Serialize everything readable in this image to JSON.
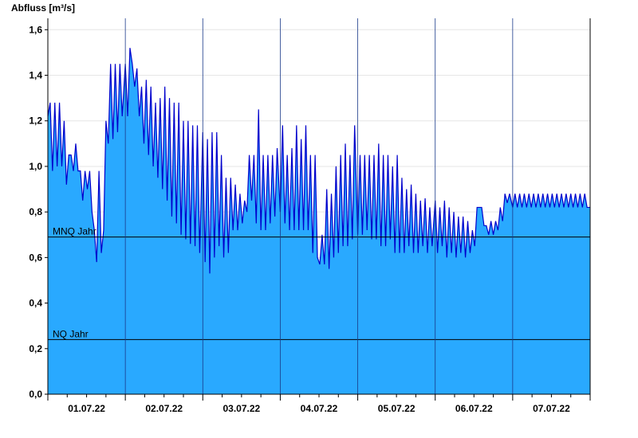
{
  "chart_data": {
    "type": "area",
    "ylabel": "Abfluss [m³/s]",
    "xlabel": "",
    "ylim": [
      0,
      1.65
    ],
    "yticks": [
      "0,0",
      "0,2",
      "0,4",
      "0,6",
      "0,8",
      "1,0",
      "1,2",
      "1,4",
      "1,6"
    ],
    "ytick_values": [
      0,
      0.2,
      0.4,
      0.6,
      0.8,
      1.0,
      1.2,
      1.4,
      1.6
    ],
    "xlim_days": [
      0,
      7
    ],
    "x_categories": [
      "01.07.22",
      "02.07.22",
      "03.07.22",
      "04.07.22",
      "05.07.22",
      "06.07.22",
      "07.07.22"
    ],
    "fill_color": "#29a9ff",
    "line_color": "#0000cc",
    "grid": "horizontal",
    "reference_lines": [
      {
        "label": "MNQ Jahr",
        "value": 0.69
      },
      {
        "label": "NQ Jahr",
        "value": 0.24
      }
    ],
    "series": [
      {
        "x_days": [
          0,
          0.03,
          0.06,
          0.09,
          0.12,
          0.15,
          0.18,
          0.21,
          0.24,
          0.27,
          0.3,
          0.33,
          0.36,
          0.39,
          0.42,
          0.45,
          0.48,
          0.51,
          0.54,
          0.57,
          0.6,
          0.63,
          0.66,
          0.69,
          0.72,
          0.75,
          0.78,
          0.81,
          0.84,
          0.87,
          0.9,
          0.93,
          0.96,
          1.0,
          1.03,
          1.06,
          1.09,
          1.12,
          1.15,
          1.18,
          1.21,
          1.24,
          1.27,
          1.3,
          1.33,
          1.36,
          1.39,
          1.42,
          1.45,
          1.48,
          1.51,
          1.54,
          1.57,
          1.6,
          1.63,
          1.66,
          1.69,
          1.72,
          1.75,
          1.78,
          1.81,
          1.84,
          1.87,
          1.9,
          1.93,
          1.96,
          2.0,
          2.03,
          2.06,
          2.09,
          2.12,
          2.15,
          2.18,
          2.21,
          2.24,
          2.27,
          2.3,
          2.33,
          2.36,
          2.39,
          2.42,
          2.45,
          2.48,
          2.51,
          2.54,
          2.57,
          2.6,
          2.63,
          2.66,
          2.69,
          2.72,
          2.75,
          2.78,
          2.81,
          2.84,
          2.87,
          2.9,
          2.93,
          2.96,
          3.0,
          3.03,
          3.06,
          3.09,
          3.12,
          3.15,
          3.18,
          3.21,
          3.24,
          3.27,
          3.3,
          3.33,
          3.36,
          3.39,
          3.42,
          3.45,
          3.48,
          3.51,
          3.54,
          3.57,
          3.6,
          3.63,
          3.66,
          3.69,
          3.72,
          3.75,
          3.78,
          3.81,
          3.84,
          3.87,
          3.9,
          3.93,
          3.96,
          4.0,
          4.03,
          4.06,
          4.09,
          4.12,
          4.15,
          4.18,
          4.21,
          4.24,
          4.27,
          4.3,
          4.33,
          4.36,
          4.39,
          4.42,
          4.45,
          4.48,
          4.51,
          4.54,
          4.57,
          4.6,
          4.63,
          4.66,
          4.69,
          4.72,
          4.75,
          4.78,
          4.81,
          4.84,
          4.87,
          4.9,
          4.93,
          4.96,
          5.0,
          5.03,
          5.06,
          5.09,
          5.12,
          5.15,
          5.18,
          5.21,
          5.24,
          5.27,
          5.3,
          5.33,
          5.36,
          5.39,
          5.42,
          5.45,
          5.48,
          5.51,
          5.54,
          5.57,
          5.6,
          5.63,
          5.66,
          5.69,
          5.72,
          5.75,
          5.78,
          5.81,
          5.84,
          5.87,
          5.9,
          5.93,
          5.96,
          6.0,
          6.03,
          6.06,
          6.09,
          6.12,
          6.15,
          6.18,
          6.21,
          6.24,
          6.27,
          6.3,
          6.33,
          6.36,
          6.39,
          6.42,
          6.45,
          6.48,
          6.51,
          6.54,
          6.57,
          6.6,
          6.63,
          6.66,
          6.69,
          6.72,
          6.75,
          6.78,
          6.81,
          6.84,
          6.87,
          6.9,
          6.93,
          6.96,
          7.0
        ],
        "values": [
          1.22,
          1.28,
          0.98,
          1.28,
          1.0,
          1.28,
          1.0,
          1.2,
          0.92,
          1.05,
          1.05,
          0.98,
          1.1,
          0.98,
          0.98,
          0.85,
          0.98,
          0.9,
          0.98,
          0.8,
          0.72,
          0.58,
          0.98,
          0.62,
          0.72,
          1.2,
          1.1,
          1.45,
          1.12,
          1.45,
          1.15,
          1.45,
          1.22,
          1.45,
          1.22,
          1.52,
          1.45,
          1.35,
          1.43,
          1.22,
          1.35,
          1.1,
          1.38,
          1.05,
          1.35,
          1.0,
          1.28,
          0.95,
          1.3,
          0.9,
          1.35,
          0.85,
          1.3,
          0.78,
          1.28,
          0.75,
          1.28,
          0.7,
          1.2,
          0.68,
          1.2,
          0.66,
          1.18,
          0.65,
          1.18,
          0.62,
          1.15,
          0.58,
          1.12,
          0.53,
          1.15,
          0.6,
          1.15,
          0.65,
          1.05,
          0.6,
          0.95,
          0.62,
          0.95,
          0.72,
          0.92,
          0.72,
          0.88,
          0.75,
          0.85,
          0.8,
          1.05,
          0.85,
          1.05,
          0.75,
          1.25,
          0.72,
          1.05,
          0.72,
          1.05,
          0.75,
          1.05,
          0.78,
          1.08,
          0.8,
          1.18,
          0.75,
          1.05,
          0.72,
          1.08,
          0.72,
          1.18,
          0.72,
          1.12,
          0.72,
          1.18,
          0.72,
          1.05,
          0.62,
          1.05,
          0.6,
          0.57,
          0.7,
          0.57,
          0.9,
          0.55,
          0.88,
          0.6,
          1.0,
          0.62,
          1.05,
          0.65,
          1.1,
          0.65,
          1.05,
          0.68,
          1.18,
          0.7,
          1.05,
          0.7,
          1.05,
          0.72,
          1.05,
          0.68,
          1.05,
          0.68,
          1.1,
          0.65,
          1.05,
          0.65,
          1.05,
          0.68,
          1.0,
          0.62,
          1.05,
          0.62,
          0.95,
          0.62,
          0.9,
          0.65,
          0.92,
          0.62,
          0.88,
          0.62,
          0.85,
          0.65,
          0.86,
          0.62,
          0.82,
          0.65,
          0.85,
          0.62,
          0.82,
          0.65,
          0.85,
          0.6,
          0.82,
          0.62,
          0.8,
          0.6,
          0.78,
          0.62,
          0.78,
          0.6,
          0.76,
          0.62,
          0.72,
          0.65,
          0.82,
          0.82,
          0.82,
          0.74,
          0.74,
          0.7,
          0.76,
          0.7,
          0.76,
          0.72,
          0.82,
          0.76,
          0.88,
          0.84,
          0.88,
          0.82,
          0.88,
          0.82,
          0.88,
          0.82,
          0.88,
          0.82,
          0.88,
          0.82,
          0.88,
          0.82,
          0.88,
          0.82,
          0.88,
          0.82,
          0.88,
          0.82,
          0.88,
          0.82,
          0.88,
          0.82,
          0.88,
          0.82,
          0.88,
          0.82,
          0.88,
          0.82,
          0.88,
          0.82,
          0.88,
          0.82,
          0.88,
          0.82,
          0.82
        ]
      }
    ]
  }
}
